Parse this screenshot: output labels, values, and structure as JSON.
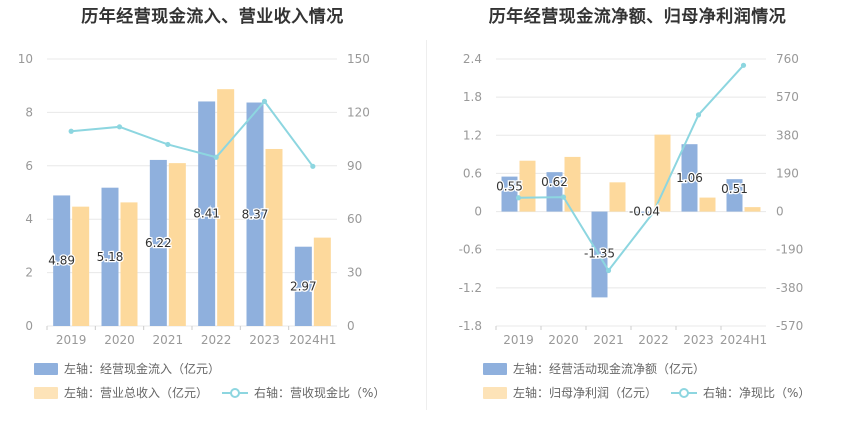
{
  "colors": {
    "bar_primary": "#8fb0dd",
    "bar_secondary": "#fdd99c",
    "line": "#8dd6e0",
    "axis_text": "#999999",
    "grid": "#e8e8e8",
    "title": "#333333"
  },
  "left_panel": {
    "title": "历年经营现金流入、营业收入情况",
    "legend": [
      {
        "label": "左轴：经营现金流入（亿元）",
        "kind": "bar",
        "color": "#8fb0dd"
      },
      {
        "label": "左轴：营业总收入（亿元）",
        "kind": "bar",
        "color": "#fdd99c"
      },
      {
        "label": "右轴：营收现金比（%）",
        "kind": "line",
        "color": "#8dd6e0"
      }
    ]
  },
  "right_panel": {
    "title": "历年经营现金流净额、归母净利润情况",
    "legend": [
      {
        "label": "左轴：经营活动现金流净额（亿元）",
        "kind": "bar",
        "color": "#8fb0dd"
      },
      {
        "label": "左轴：归母净利润（亿元）",
        "kind": "bar",
        "color": "#fdd99c"
      },
      {
        "label": "右轴：净现比（%）",
        "kind": "line",
        "color": "#8dd6e0"
      }
    ]
  },
  "chart_data": [
    {
      "type": "bar",
      "title": "历年经营现金流入、营业收入情况",
      "categories": [
        "2019",
        "2020",
        "2021",
        "2022",
        "2023",
        "2024H1"
      ],
      "left_axis": {
        "ylim": [
          0,
          10
        ],
        "ticks": [
          "0",
          "2",
          "4",
          "6",
          "8",
          "10"
        ]
      },
      "right_axis": {
        "ylim": [
          0,
          150
        ],
        "ticks": [
          "0",
          "30",
          "60",
          "90",
          "120",
          "150"
        ]
      },
      "series": [
        {
          "name": "经营现金流入（亿元）",
          "axis": "left",
          "kind": "bar",
          "color": "#8fb0dd",
          "values": [
            4.89,
            5.18,
            6.22,
            8.41,
            8.37,
            2.97
          ],
          "labels": [
            "4.89",
            "5.18",
            "6.22",
            "8.41",
            "8.37",
            "2.97"
          ]
        },
        {
          "name": "营业总收入（亿元）",
          "axis": "left",
          "kind": "bar",
          "color": "#fdd99c",
          "values": [
            4.47,
            4.63,
            6.1,
            8.87,
            6.63,
            3.31
          ]
        },
        {
          "name": "营收现金比（%）",
          "axis": "right",
          "kind": "line",
          "color": "#8dd6e0",
          "values": [
            109.4,
            111.9,
            102.0,
            94.8,
            126.2,
            89.7
          ]
        }
      ],
      "grid": true,
      "legend_position": "bottom"
    },
    {
      "type": "bar",
      "title": "历年经营现金流净额、归母净利润情况",
      "categories": [
        "2019",
        "2020",
        "2021",
        "2022",
        "2023",
        "2024H1"
      ],
      "left_axis": {
        "ylim": [
          -1.8,
          2.4
        ],
        "ticks": [
          "-1.8",
          "-1.2",
          "-0.6",
          "0",
          "0.6",
          "1.2",
          "1.8",
          "2.4"
        ]
      },
      "right_axis": {
        "ylim": [
          -570,
          760
        ],
        "ticks": [
          "-570",
          "-380",
          "-190",
          "0",
          "190",
          "380",
          "570",
          "760"
        ]
      },
      "series": [
        {
          "name": "经营活动现金流净额（亿元）",
          "axis": "left",
          "kind": "bar",
          "color": "#8fb0dd",
          "values": [
            0.55,
            0.62,
            -1.35,
            -0.04,
            1.06,
            0.51
          ],
          "labels": [
            "0.55",
            "0.62",
            "-1.35",
            "-0.04",
            "1.06",
            "0.51"
          ]
        },
        {
          "name": "归母净利润（亿元）",
          "axis": "left",
          "kind": "bar",
          "color": "#fdd99c",
          "values": [
            0.8,
            0.86,
            0.46,
            1.21,
            0.22,
            0.07
          ]
        },
        {
          "name": "净现比（%）",
          "axis": "right",
          "kind": "line",
          "color": "#8dd6e0",
          "values": [
            68.7,
            72.1,
            -293.5,
            -3.3,
            481.8,
            728.6
          ]
        }
      ],
      "grid": true,
      "legend_position": "bottom"
    }
  ]
}
